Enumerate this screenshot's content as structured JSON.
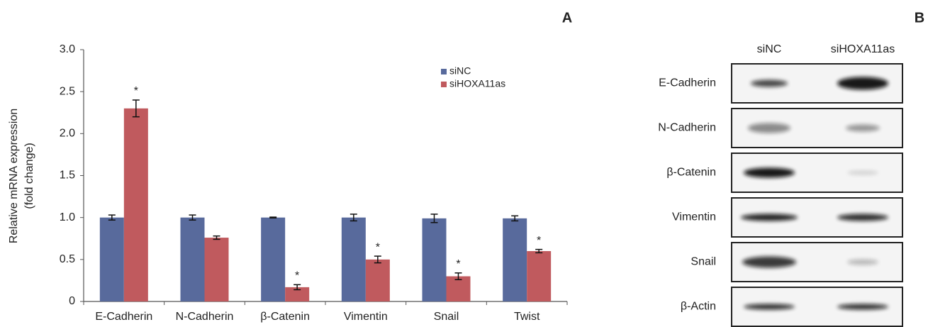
{
  "chart_data": {
    "type": "bar",
    "y_label": [
      "Relative mRNA expression",
      "(fold change)"
    ],
    "categories": [
      "E-Cadherin",
      "N-Cadherin",
      "β-Catenin",
      "Vimentin",
      "Snail",
      "Twist"
    ],
    "series": [
      {
        "name": "siNC",
        "color": "#586a9c",
        "values": [
          1.0,
          1.0,
          1.0,
          1.0,
          0.99,
          0.99
        ],
        "errors": [
          0.03,
          0.03,
          0.005,
          0.04,
          0.05,
          0.03
        ]
      },
      {
        "name": "siHOXA11as",
        "color": "#c05a5e",
        "values": [
          2.3,
          0.76,
          0.17,
          0.5,
          0.3,
          0.6
        ],
        "errors": [
          0.1,
          0.02,
          0.03,
          0.04,
          0.04,
          0.02
        ],
        "significance": [
          "*",
          null,
          "*",
          "*",
          "*",
          "*"
        ]
      }
    ],
    "ylim": [
      0,
      3
    ],
    "yticks": [
      0,
      0.5,
      {
        "value": 1,
        "label": "1.0"
      },
      1.5,
      {
        "value": 2,
        "label": "2.0"
      },
      2.5,
      {
        "value": 3,
        "label": "3.0"
      }
    ],
    "grid": false
  },
  "panel_labels": [
    "A",
    "B"
  ],
  "blot": {
    "columns": [
      "siNC",
      "siHOXA11as"
    ],
    "rows": [
      "E-Cadherin",
      "N-Cadherin",
      "β-Catenin",
      "Vimentin",
      "Snail",
      "β-Actin"
    ]
  }
}
